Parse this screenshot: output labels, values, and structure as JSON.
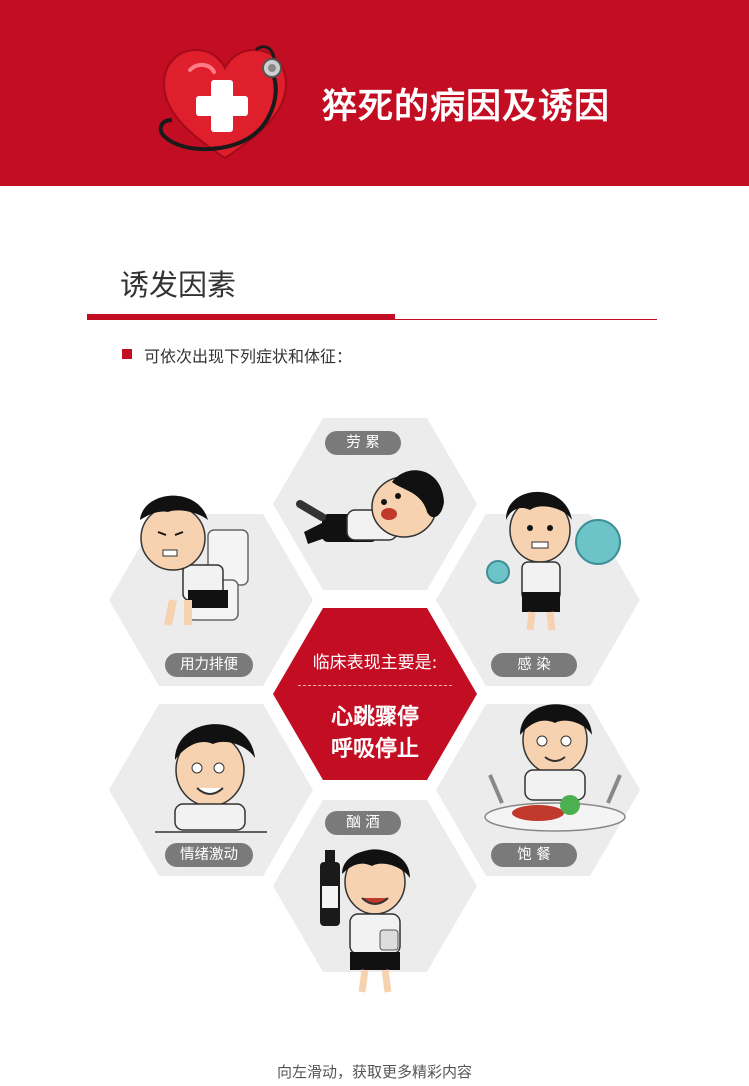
{
  "header": {
    "title": "猝死的病因及诱因",
    "bg_color": "#c30d23",
    "icon": "heart-stethoscope-icon"
  },
  "section": {
    "title": "诱发因素",
    "bullet_text": "可依次出现下列症状和体征："
  },
  "center": {
    "line1": "临床表现主要是:",
    "line2": "心跳骤停",
    "line3": "呼吸停止",
    "color": "#c30d23"
  },
  "factors": [
    {
      "label": "劳 累",
      "icon": "tired-boy-icon"
    },
    {
      "label": "用力排便",
      "icon": "toilet-boy-icon"
    },
    {
      "label": "感 染",
      "icon": "virus-boy-icon"
    },
    {
      "label": "情绪激动",
      "icon": "emotional-boy-icon"
    },
    {
      "label": "饱 餐",
      "icon": "eating-boy-icon"
    },
    {
      "label": "酗 酒",
      "icon": "drinking-boy-icon"
    }
  ],
  "footer": {
    "text": "向左滑动，获取更多精彩内容"
  }
}
